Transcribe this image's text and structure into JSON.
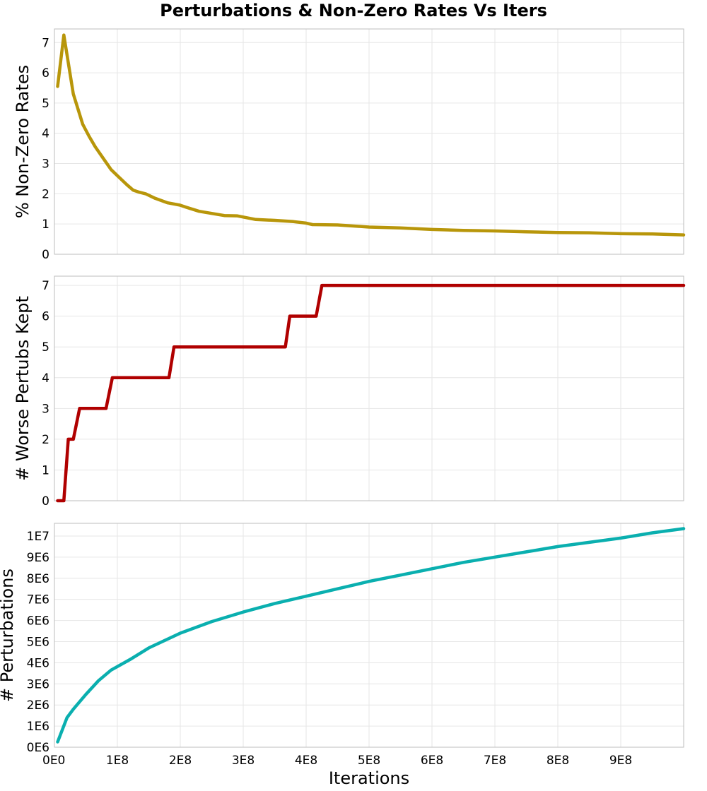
{
  "chart_data": {
    "type": "line",
    "title": "Perturbations & Non-Zero Rates Vs Iters",
    "xlabel": "Iterations",
    "xlim": [
      0,
      1000000000
    ],
    "x_ticks": [
      0,
      100000000,
      200000000,
      300000000,
      400000000,
      500000000,
      600000000,
      700000000,
      800000000,
      900000000
    ],
    "x_tick_labels": [
      "0E0",
      "1E8",
      "2E8",
      "3E8",
      "4E8",
      "5E8",
      "6E8",
      "7E8",
      "8E8",
      "9E8"
    ],
    "grid": true,
    "panels": [
      {
        "ylabel": "% Non-Zero Rates",
        "ylim": [
          0,
          7.45
        ],
        "y_ticks": [
          0,
          1,
          2,
          3,
          4,
          5,
          6,
          7
        ],
        "y_tick_labels": [
          "0",
          "1",
          "2",
          "3",
          "4",
          "5",
          "6",
          "7"
        ],
        "series": [
          {
            "color": "#b8960a",
            "x": [
              5000000,
              15000000,
              30000000,
              45000000,
              55000000,
              65000000,
              80000000,
              90000000,
              100000000,
              115000000,
              125000000,
              135000000,
              145000000,
              160000000,
              180000000,
              200000000,
              210000000,
              230000000,
              250000000,
              270000000,
              290000000,
              300000000,
              320000000,
              350000000,
              380000000,
              400000000,
              410000000,
              450000000,
              500000000,
              550000000,
              600000000,
              650000000,
              700000000,
              750000000,
              800000000,
              850000000,
              900000000,
              950000000,
              1000000000
            ],
            "y": [
              5.55,
              7.25,
              5.3,
              4.3,
              3.9,
              3.55,
              3.1,
              2.8,
              2.6,
              2.3,
              2.12,
              2.05,
              2.0,
              1.85,
              1.7,
              1.62,
              1.55,
              1.42,
              1.35,
              1.28,
              1.27,
              1.23,
              1.15,
              1.12,
              1.08,
              1.03,
              0.98,
              0.97,
              0.9,
              0.87,
              0.82,
              0.79,
              0.77,
              0.74,
              0.72,
              0.71,
              0.68,
              0.67,
              0.64
            ]
          }
        ]
      },
      {
        "ylabel": "# Worse Pertubs Kept",
        "ylim": [
          0,
          7.3
        ],
        "y_ticks": [
          0,
          1,
          2,
          3,
          4,
          5,
          6,
          7
        ],
        "y_tick_labels": [
          "0",
          "1",
          "2",
          "3",
          "4",
          "5",
          "6",
          "7"
        ],
        "series": [
          {
            "color": "#b00000",
            "x": [
              5000000,
              15000000,
              22000000,
              30000000,
              40000000,
              82000000,
              92000000,
              182000000,
              190000000,
              367000000,
              374000000,
              416000000,
              425000000,
              1000000000
            ],
            "y": [
              0,
              0,
              2,
              2,
              3,
              3,
              4,
              4,
              5,
              5,
              6,
              6,
              7,
              7
            ]
          }
        ]
      },
      {
        "ylabel": "# Perturbations",
        "ylim": [
          0,
          10600000
        ],
        "y_ticks": [
          0,
          1000000,
          2000000,
          3000000,
          4000000,
          5000000,
          6000000,
          7000000,
          8000000,
          9000000,
          10000000
        ],
        "y_tick_labels": [
          "0E6",
          "1E6",
          "2E6",
          "3E6",
          "4E6",
          "5E6",
          "6E6",
          "7E6",
          "8E6",
          "9E6",
          "1E7"
        ],
        "series": [
          {
            "color": "#0aafaf",
            "x": [
              5000000,
              20000000,
              30000000,
              50000000,
              70000000,
              90000000,
              120000000,
              150000000,
              200000000,
              250000000,
              300000000,
              350000000,
              400000000,
              450000000,
              500000000,
              550000000,
              600000000,
              650000000,
              700000000,
              750000000,
              800000000,
              850000000,
              900000000,
              950000000,
              1000000000
            ],
            "y": [
              250000,
              1400000,
              1800000,
              2500000,
              3150000,
              3650000,
              4150000,
              4700000,
              5400000,
              5950000,
              6400000,
              6800000,
              7150000,
              7500000,
              7850000,
              8150000,
              8450000,
              8750000,
              9000000,
              9250000,
              9500000,
              9700000,
              9900000,
              10150000,
              10350000
            ]
          }
        ]
      }
    ]
  }
}
